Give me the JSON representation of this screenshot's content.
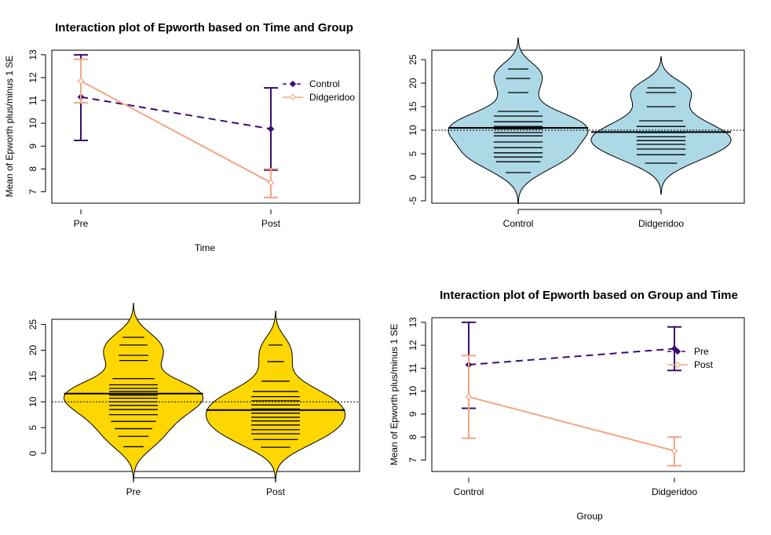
{
  "colors": {
    "purple": "#3b0f70",
    "orange": "#f4a582",
    "bean_blue": "#add8e6",
    "bean_gold": "#ffd700"
  },
  "chart_data": [
    {
      "id": "p1",
      "type": "line",
      "title": "Interaction plot of Epworth based on Time and Group",
      "xlabel": "Time",
      "ylabel": "Mean of  Epworth plus/minus 1 SE",
      "categories": [
        "Pre",
        "Post"
      ],
      "ylim": [
        6.5,
        13.2
      ],
      "yticks": [
        "7",
        "8",
        "9",
        "10",
        "11",
        "12",
        "13"
      ],
      "legend_position": "top-right",
      "series": [
        {
          "name": "Control",
          "color": "#3b0f70",
          "dashed": true,
          "marker": "diamond",
          "values": [
            11.15,
            9.75
          ],
          "lower": [
            9.25,
            7.95
          ],
          "upper": [
            13.0,
            11.55
          ]
        },
        {
          "name": "Didgeridoo",
          "color": "#f4a582",
          "dashed": false,
          "marker": "open-diamond",
          "values": [
            11.85,
            7.4
          ],
          "lower": [
            10.9,
            6.75
          ],
          "upper": [
            12.8,
            8.0
          ]
        }
      ]
    },
    {
      "id": "p2",
      "type": "beanplot",
      "title": "",
      "categories": [
        "Control",
        "Didgeridoo"
      ],
      "ylim": [
        -5.5,
        27
      ],
      "yticks": [
        "-5",
        "0",
        "5",
        "10",
        "15",
        "20",
        "25"
      ],
      "overall_mean": 10,
      "fill": "#add8e6",
      "beans": [
        {
          "name": "Control",
          "mean": 10.5,
          "observations": [
            1,
            3.3,
            4.3,
            5.2,
            6.3,
            7.5,
            8.8,
            9.5,
            10.3,
            10.8,
            11.8,
            13,
            14,
            18,
            21,
            23
          ]
        },
        {
          "name": "Didgeridoo",
          "mean": 9.6,
          "observations": [
            3,
            4.8,
            6,
            7,
            7.8,
            8.6,
            9.5,
            10.8,
            12,
            15,
            18,
            19
          ]
        }
      ]
    },
    {
      "id": "p3",
      "type": "beanplot",
      "title": "",
      "categories": [
        "Pre",
        "Post"
      ],
      "ylim": [
        -3.5,
        26
      ],
      "yticks": [
        "0",
        "5",
        "10",
        "15",
        "20",
        "25"
      ],
      "overall_mean": 10,
      "fill": "#ffd700",
      "beans": [
        {
          "name": "Pre",
          "mean": 11.6,
          "observations": [
            1.3,
            3.3,
            4.8,
            6.2,
            7.5,
            8.5,
            9.3,
            10,
            10.7,
            11.3,
            12,
            12.6,
            13.3,
            14.5,
            18,
            19,
            21,
            22.5
          ]
        },
        {
          "name": "Post",
          "mean": 8.4,
          "observations": [
            1.2,
            2.7,
            3.8,
            4.6,
            5.5,
            6.3,
            7,
            7.8,
            8.6,
            9.4,
            10.2,
            11,
            12,
            14,
            17.8,
            21
          ]
        }
      ]
    },
    {
      "id": "p4",
      "type": "line",
      "title": "Interaction plot of Epworth based on Group and Time",
      "xlabel": "Group",
      "ylabel": "Mean of  Epworth plus/minus 1 SE",
      "categories": [
        "Control",
        "Didgeridoo"
      ],
      "ylim": [
        6.5,
        13.2
      ],
      "yticks": [
        "7",
        "8",
        "9",
        "10",
        "11",
        "12",
        "13"
      ],
      "legend_position": "top-right",
      "series": [
        {
          "name": "Pre",
          "color": "#3b0f70",
          "dashed": true,
          "marker": "diamond",
          "values": [
            11.15,
            11.85
          ],
          "lower": [
            9.25,
            10.9
          ],
          "upper": [
            13.0,
            12.8
          ]
        },
        {
          "name": "Post",
          "color": "#f4a582",
          "dashed": false,
          "marker": "open-diamond",
          "values": [
            9.75,
            7.4
          ],
          "lower": [
            7.95,
            6.75
          ],
          "upper": [
            11.55,
            8.0
          ]
        }
      ]
    }
  ]
}
